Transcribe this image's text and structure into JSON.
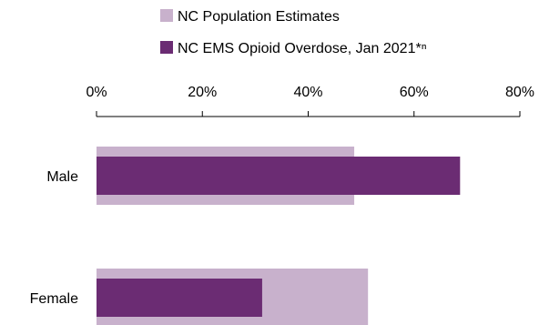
{
  "chart_data": {
    "type": "bar",
    "orientation": "horizontal",
    "axis_position": "top",
    "legend_position": "top",
    "grid": false,
    "categories": [
      "Male",
      "Female"
    ],
    "xlim": [
      0,
      80
    ],
    "x_ticks": [
      "0%",
      "20%",
      "40%",
      "60%",
      "80%"
    ],
    "x_tick_values": [
      0,
      20,
      40,
      60,
      80
    ],
    "series": [
      {
        "name": "NC Population Estimates",
        "values": [
          48.7,
          51.3
        ],
        "color": "#c8b1cc"
      },
      {
        "name": "NC EMS Opioid Overdose, Jan 2021*ⁿ",
        "values": [
          68.7,
          31.3
        ],
        "color": "#6b2c73"
      }
    ]
  }
}
